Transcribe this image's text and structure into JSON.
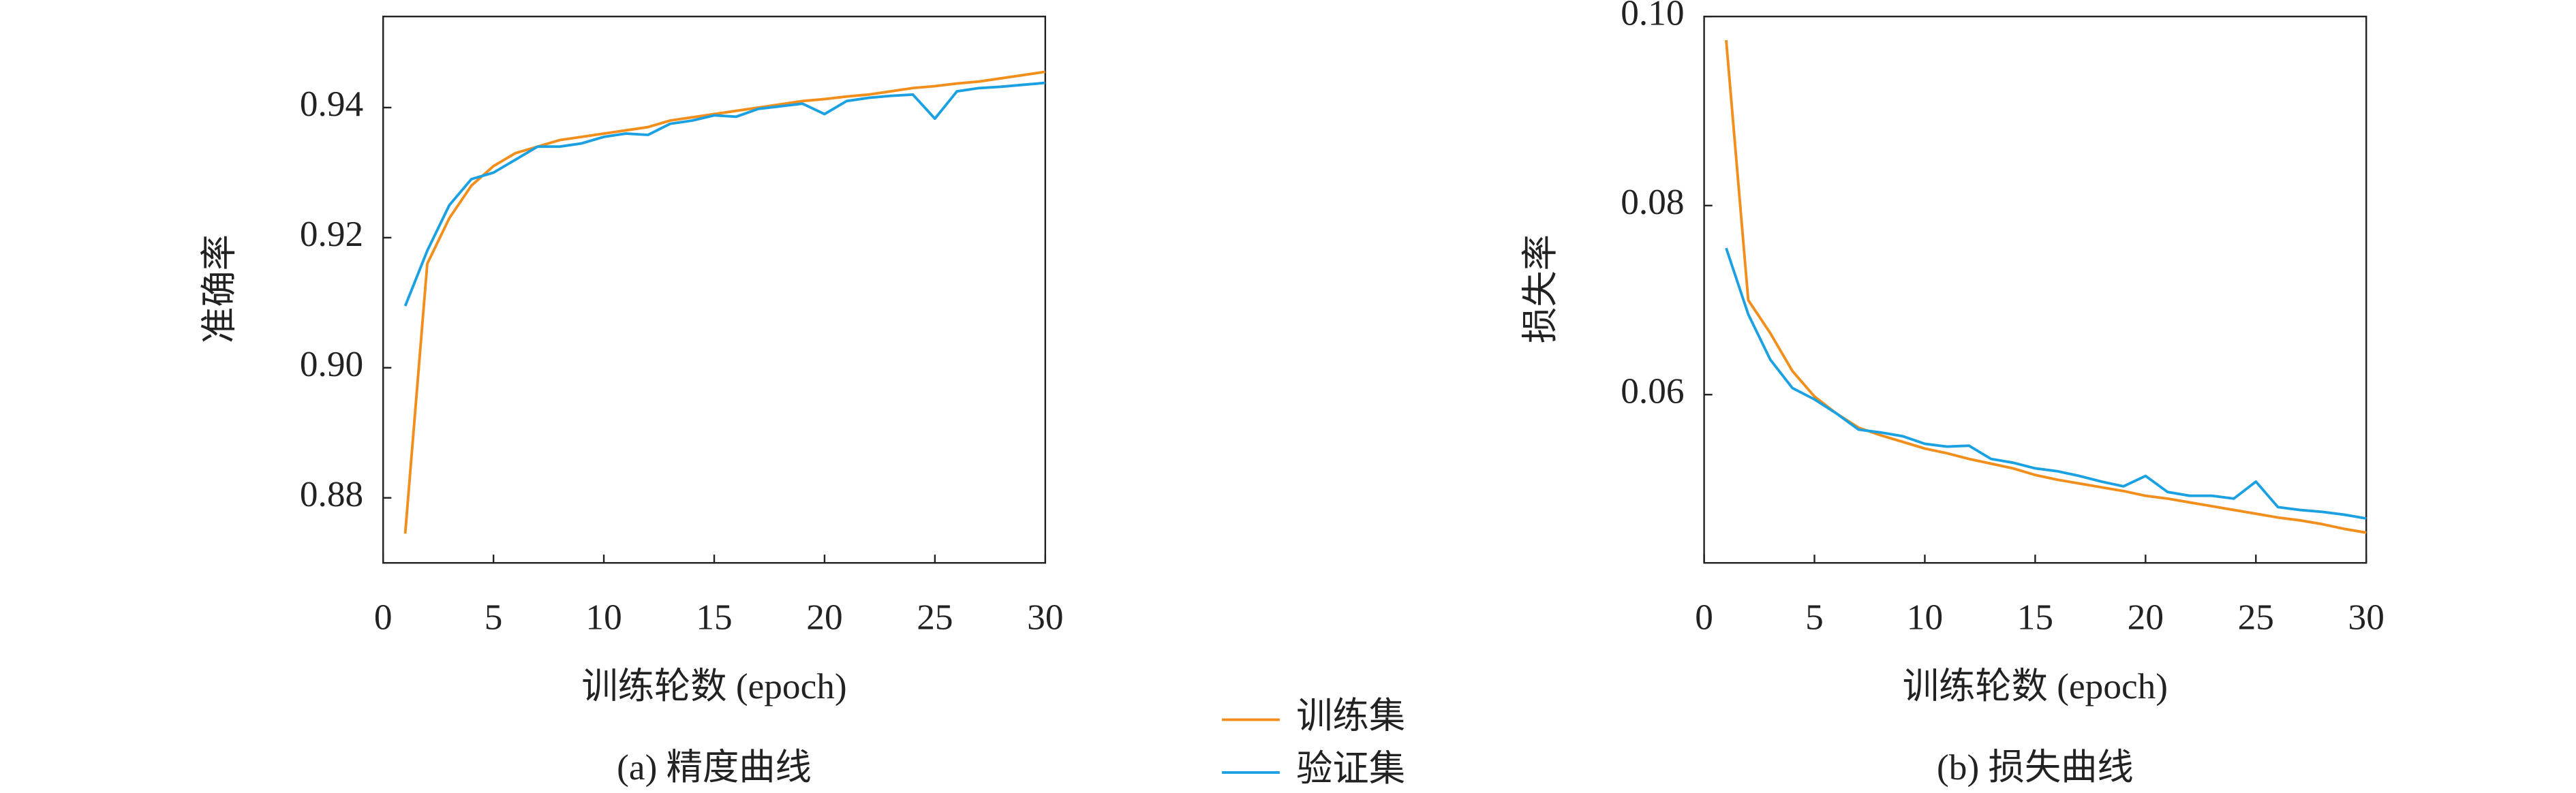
{
  "chart_data": [
    {
      "type": "line",
      "ylabel": "准确率",
      "xlabel": "训练轮数 (epoch)",
      "caption": "(a) 精度曲线",
      "x": [
        1,
        2,
        3,
        4,
        5,
        6,
        7,
        8,
        9,
        10,
        11,
        12,
        13,
        14,
        15,
        16,
        17,
        18,
        19,
        20,
        21,
        22,
        23,
        24,
        25,
        26,
        27,
        28,
        29,
        30
      ],
      "xlim": [
        0,
        30
      ],
      "xticks": [
        0,
        5,
        10,
        15,
        20,
        25,
        30
      ],
      "ylim": [
        0.87,
        0.954
      ],
      "yticks": [
        0.88,
        {
          "value": 0.9,
          "label": "0.90"
        },
        0.92,
        0.94
      ],
      "series": [
        {
          "name": "训练集",
          "color": "#f28e1c",
          "values": [
            0.8745,
            0.916,
            0.923,
            0.928,
            0.931,
            0.933,
            0.934,
            0.935,
            0.9355,
            0.936,
            0.9365,
            0.937,
            0.938,
            0.9385,
            0.939,
            0.9395,
            0.94,
            0.9405,
            0.941,
            0.9413,
            0.9417,
            0.942,
            0.9425,
            0.943,
            0.9433,
            0.9437,
            0.944,
            0.9445,
            0.945,
            0.9455
          ]
        },
        {
          "name": "验证集",
          "color": "#1ba1e2",
          "values": [
            0.9095,
            0.918,
            0.925,
            0.929,
            0.93,
            0.932,
            0.934,
            0.934,
            0.9345,
            0.9355,
            0.936,
            0.9358,
            0.9375,
            0.938,
            0.9388,
            0.9386,
            0.9398,
            0.9402,
            0.9406,
            0.939,
            0.941,
            0.9415,
            0.9418,
            0.942,
            0.9383,
            0.9425,
            0.943,
            0.9432,
            0.9435,
            0.9438
          ]
        }
      ]
    },
    {
      "type": "line",
      "ylabel": "损失率",
      "xlabel": "训练轮数 (epoch)",
      "caption": "(b) 损失曲线",
      "x": [
        1,
        2,
        3,
        4,
        5,
        6,
        7,
        8,
        9,
        10,
        11,
        12,
        13,
        14,
        15,
        16,
        17,
        18,
        19,
        20,
        21,
        22,
        23,
        24,
        25,
        26,
        27,
        28,
        29,
        30
      ],
      "xlim": [
        0,
        30
      ],
      "xticks": [
        0,
        5,
        10,
        15,
        20,
        25,
        30
      ],
      "ylim": [
        0.0422,
        0.1
      ],
      "yticks": [
        0.06,
        0.08,
        {
          "value": 0.1,
          "label": "0.10"
        }
      ],
      "series": [
        {
          "color": "#f28e1c",
          "values": [
            0.0975,
            0.07,
            0.0665,
            0.0625,
            0.0598,
            0.058,
            0.0565,
            0.0557,
            0.055,
            0.0543,
            0.0538,
            0.0532,
            0.0527,
            0.0522,
            0.0515,
            0.051,
            0.0506,
            0.0502,
            0.0498,
            0.0493,
            0.049,
            0.0486,
            0.0482,
            0.0478,
            0.0474,
            0.047,
            0.0467,
            0.0463,
            0.0458,
            0.0454
          ]
        },
        {
          "color": "#1ba1e2",
          "values": [
            0.0755,
            0.0685,
            0.0637,
            0.0607,
            0.0595,
            0.058,
            0.0563,
            0.056,
            0.0556,
            0.0548,
            0.0545,
            0.0546,
            0.0532,
            0.0528,
            0.0522,
            0.0519,
            0.0514,
            0.0508,
            0.0503,
            0.0514,
            0.0497,
            0.0493,
            0.0493,
            0.049,
            0.0508,
            0.0481,
            0.0478,
            0.0476,
            0.0473,
            0.0469
          ]
        }
      ]
    }
  ]
}
